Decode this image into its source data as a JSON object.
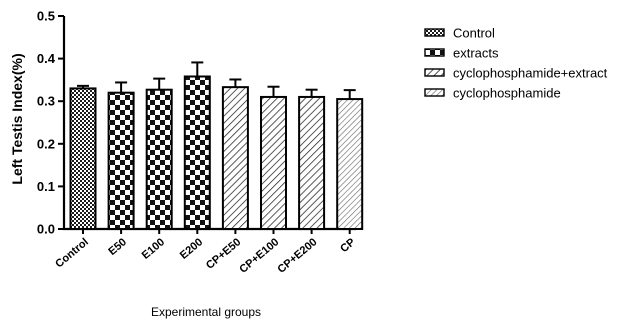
{
  "chart_data": {
    "type": "bar",
    "categories": [
      "Control",
      "E50",
      "E100",
      "E200",
      "CP+E50",
      "CP+E100",
      "CP+E200",
      "CP"
    ],
    "values": [
      0.33,
      0.32,
      0.327,
      0.358,
      0.333,
      0.31,
      0.31,
      0.305
    ],
    "errors": [
      0.006,
      0.024,
      0.026,
      0.033,
      0.018,
      0.024,
      0.017,
      0.021
    ],
    "bar_patterns": [
      "control",
      "extracts",
      "extracts",
      "extracts",
      "cyclo-extract",
      "cyclo-extract",
      "cyclo-extract",
      "cyclo"
    ],
    "ylabel": "Left Testis Index(%)",
    "xlabel": "Experimental groups",
    "ylim": [
      0,
      0.5
    ],
    "yticks": [
      0.0,
      0.1,
      0.2,
      0.3,
      0.4,
      0.5
    ],
    "ytick_labels": [
      "0.0",
      "0.1",
      "0.2",
      "0.3",
      "0.4",
      "0.5"
    ],
    "grid": false,
    "legend_position": "right",
    "legend": [
      {
        "label": "Control",
        "pattern": "control"
      },
      {
        "label": "extracts",
        "pattern": "extracts"
      },
      {
        "label": "cyclophosphamide+extract",
        "pattern": "cyclo-extract"
      },
      {
        "label": "cyclophosphamide",
        "pattern": "cyclo"
      }
    ]
  }
}
